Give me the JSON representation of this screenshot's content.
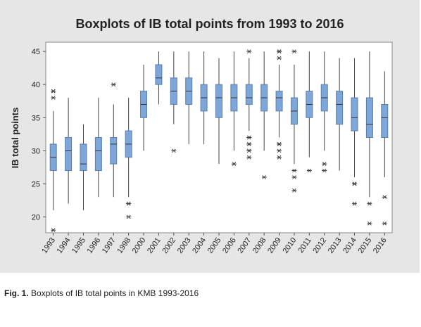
{
  "chart_data": {
    "type": "box",
    "title": "Boxplots of IB total points from 1993 to 2016",
    "y_label": "IB total points",
    "categories": [
      "1993",
      "1994",
      "1995",
      "1996",
      "1997",
      "1998",
      "2000",
      "2001",
      "2002",
      "2003",
      "2004",
      "2005",
      "2006",
      "2007",
      "2008",
      "2009",
      "2010",
      "2011",
      "2012",
      "2013",
      "2014",
      "2015",
      "2016"
    ],
    "color": "#7ea6d8",
    "boxes": [
      {
        "min": 21,
        "q1": 27,
        "median": 29,
        "q3": 31,
        "max": 36,
        "outliers": [
          39,
          39,
          38,
          18
        ]
      },
      {
        "min": 22,
        "q1": 27,
        "median": 30,
        "q3": 32,
        "max": 38,
        "outliers": []
      },
      {
        "min": 21,
        "q1": 27,
        "median": 28,
        "q3": 31,
        "max": 34,
        "outliers": []
      },
      {
        "min": 23,
        "q1": 27,
        "median": 30,
        "q3": 32,
        "max": 38,
        "outliers": []
      },
      {
        "min": 23,
        "q1": 28,
        "median": 31,
        "q3": 32,
        "max": 37,
        "outliers": [
          40
        ]
      },
      {
        "min": 23,
        "q1": 29,
        "median": 31,
        "q3": 33,
        "max": 38,
        "outliers": [
          22,
          22,
          20
        ]
      },
      {
        "min": 30,
        "q1": 35,
        "median": 37,
        "q3": 39,
        "max": 43,
        "outliers": []
      },
      {
        "min": 37,
        "q1": 40,
        "median": 41,
        "q3": 43,
        "max": 45,
        "outliers": []
      },
      {
        "min": 34,
        "q1": 37,
        "median": 39,
        "q3": 41,
        "max": 45,
        "outliers": [
          30
        ]
      },
      {
        "min": 31,
        "q1": 37,
        "median": 39,
        "q3": 41,
        "max": 45,
        "outliers": []
      },
      {
        "min": 31,
        "q1": 36,
        "median": 38,
        "q3": 40,
        "max": 45,
        "outliers": []
      },
      {
        "min": 28,
        "q1": 35,
        "median": 38,
        "q3": 40,
        "max": 44,
        "outliers": []
      },
      {
        "min": 30,
        "q1": 36,
        "median": 38,
        "q3": 40,
        "max": 45,
        "outliers": [
          28
        ]
      },
      {
        "min": 33,
        "q1": 37,
        "median": 38,
        "q3": 40,
        "max": 44,
        "outliers": [
          45,
          32,
          32,
          31,
          31,
          30,
          30,
          29
        ]
      },
      {
        "min": 30,
        "q1": 36,
        "median": 38,
        "q3": 40,
        "max": 45,
        "outliers": [
          26
        ]
      },
      {
        "min": 32,
        "q1": 36,
        "median": 38,
        "q3": 39,
        "max": 43,
        "outliers": [
          45,
          45,
          45,
          44,
          31,
          31,
          30,
          29
        ]
      },
      {
        "min": 28,
        "q1": 34,
        "median": 36,
        "q3": 38,
        "max": 43,
        "outliers": [
          45,
          27,
          26,
          24
        ]
      },
      {
        "min": 29,
        "q1": 35,
        "median": 37,
        "q3": 39,
        "max": 45,
        "outliers": [
          27
        ]
      },
      {
        "min": 30,
        "q1": 36,
        "median": 38,
        "q3": 40,
        "max": 45,
        "outliers": [
          28,
          27
        ]
      },
      {
        "min": 27,
        "q1": 34,
        "median": 37,
        "q3": 39,
        "max": 44,
        "outliers": []
      },
      {
        "min": 26,
        "q1": 33,
        "median": 35,
        "q3": 38,
        "max": 44,
        "outliers": [
          25,
          25,
          25,
          22
        ]
      },
      {
        "min": 23,
        "q1": 32,
        "median": 34,
        "q3": 38,
        "max": 45,
        "outliers": [
          22,
          19
        ]
      },
      {
        "min": 26,
        "q1": 32,
        "median": 35,
        "q3": 37,
        "max": 42,
        "outliers": [
          23,
          19
        ]
      }
    ],
    "ylim": [
      17.6,
      46.4
    ],
    "yticks": [
      20,
      25,
      30,
      35,
      40,
      45
    ]
  },
  "caption": {
    "label": "Fig. 1.",
    "text": "Boxplots of IB total points in KMB 1993-2016"
  }
}
